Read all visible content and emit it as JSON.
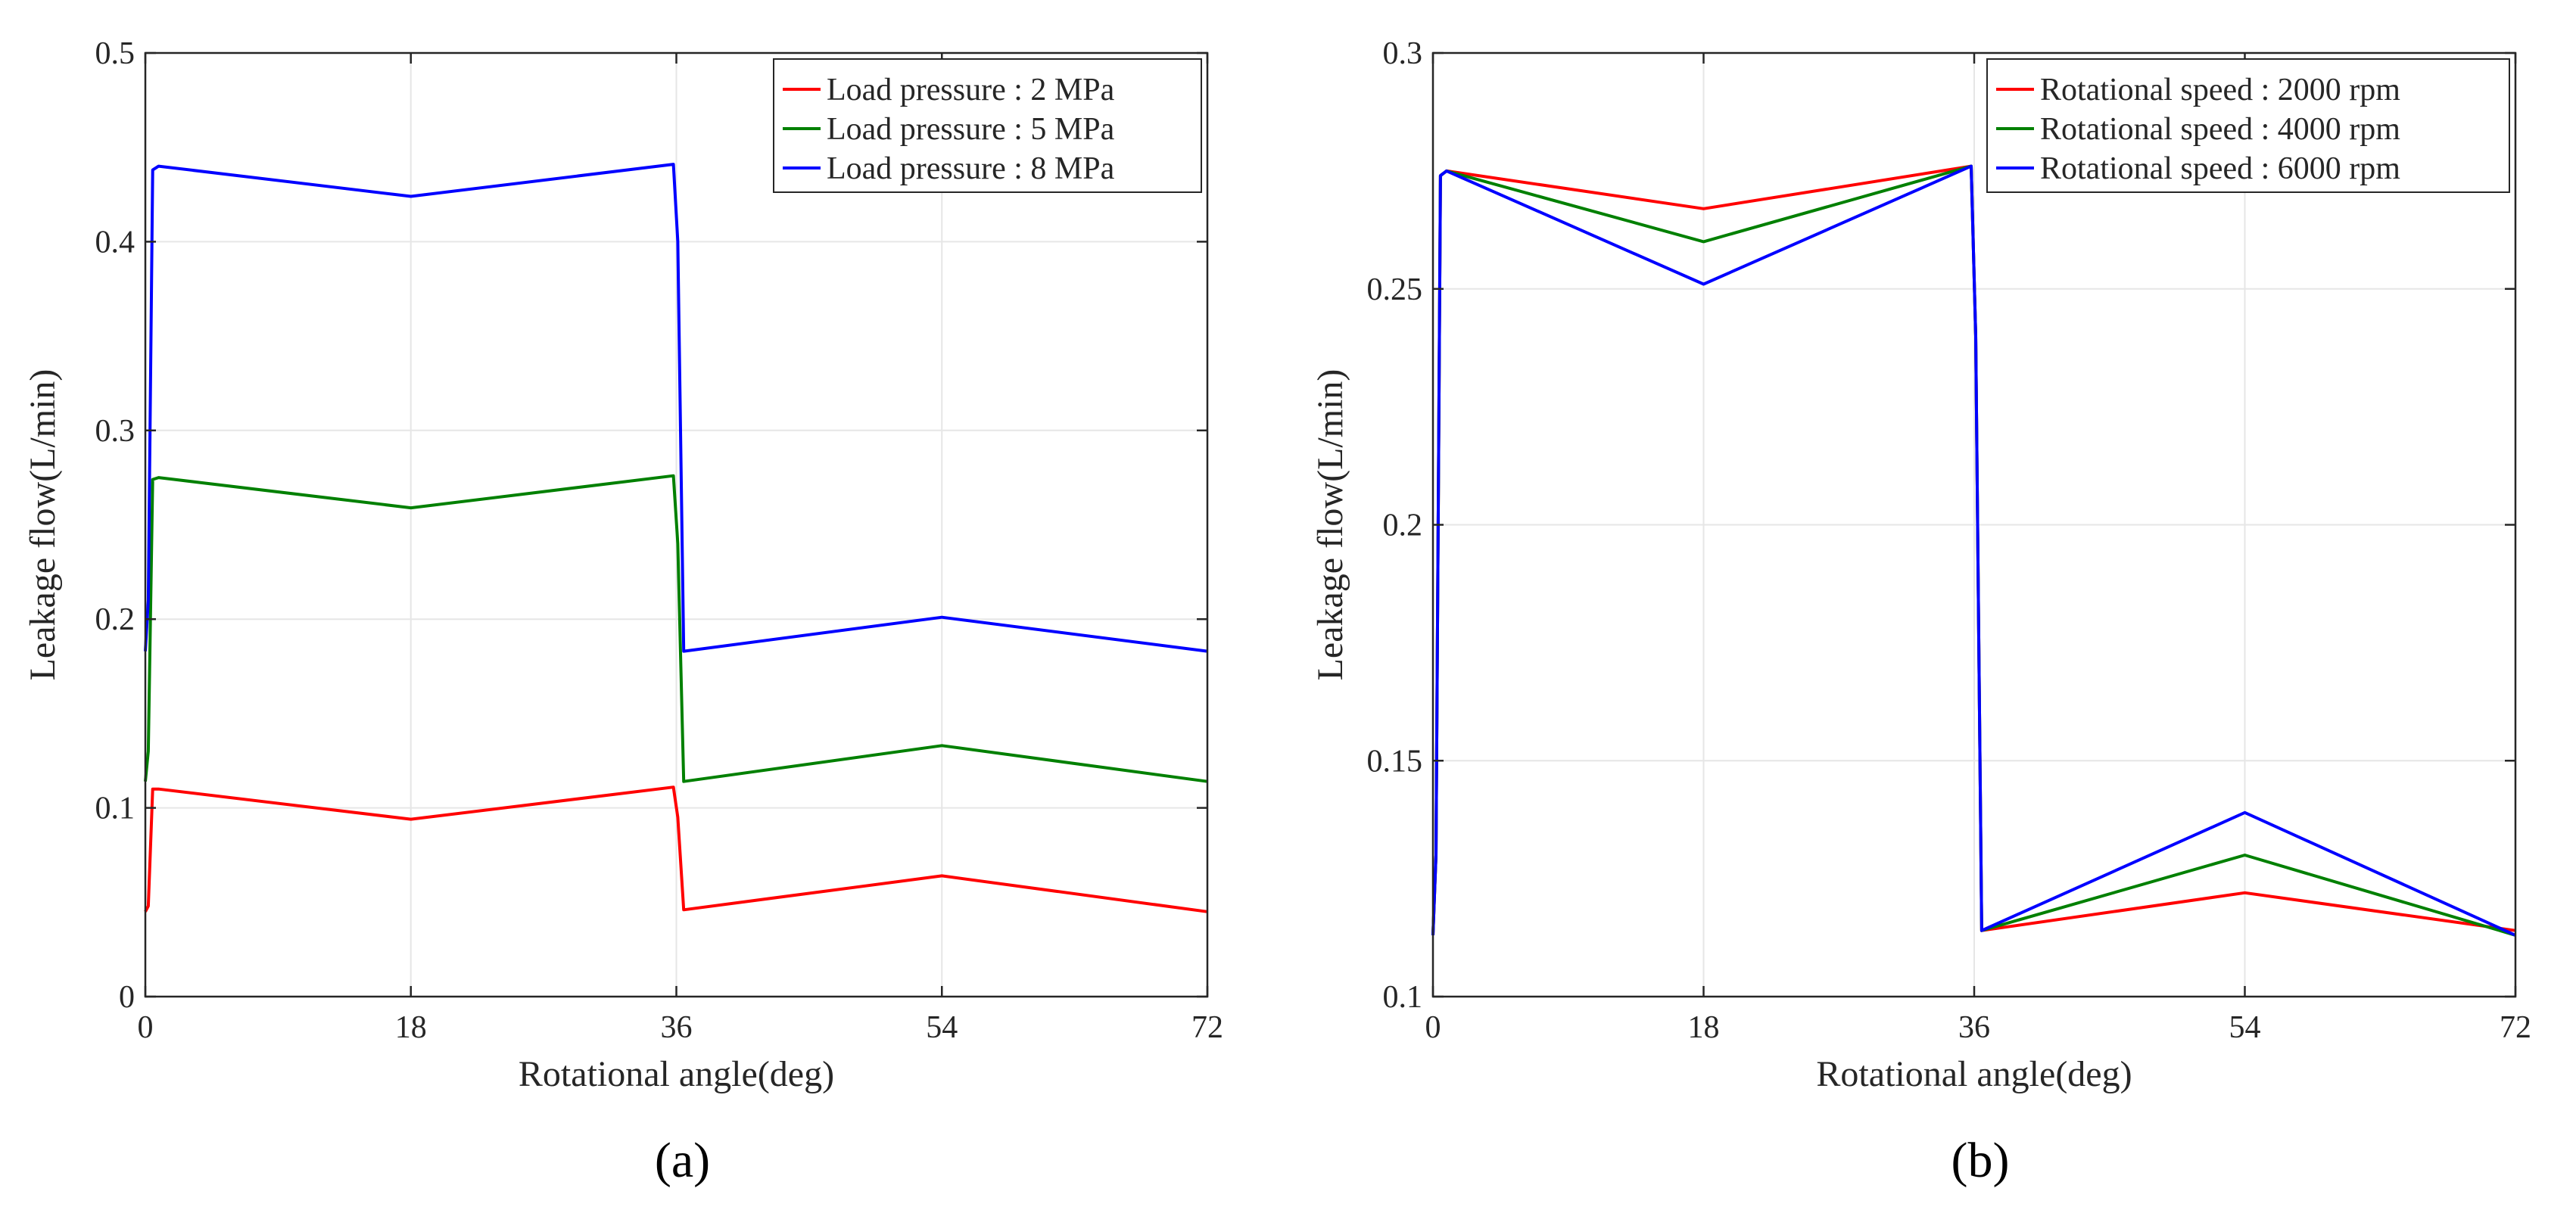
{
  "chart_data": [
    {
      "type": "line",
      "panel_label": "(a)",
      "xlabel": "Rotational angle(deg)",
      "ylabel": "Leakage flow(L/min)",
      "xlim": [
        0,
        72
      ],
      "ylim": [
        0,
        0.5
      ],
      "xticks": [
        0,
        18,
        36,
        54,
        72
      ],
      "yticks": [
        0,
        0.1,
        0.2,
        0.3,
        0.4,
        0.5
      ],
      "ytick_labels": [
        "0",
        "0.1",
        "0.2",
        "0.3",
        "0.4",
        "0.5"
      ],
      "grid": true,
      "legend_position": "top-right",
      "series": [
        {
          "name": "Load pressure : 2 MPa",
          "color": "#ff0000",
          "x": [
            0,
            0.2,
            0.5,
            0.9,
            18,
            35.8,
            36.1,
            36.5,
            54,
            72
          ],
          "y": [
            0.045,
            0.048,
            0.11,
            0.11,
            0.094,
            0.111,
            0.095,
            0.046,
            0.064,
            0.045
          ]
        },
        {
          "name": "Load pressure : 5 MPa",
          "color": "#008000",
          "x": [
            0,
            0.2,
            0.5,
            0.9,
            18,
            35.8,
            36.1,
            36.5,
            54,
            72
          ],
          "y": [
            0.114,
            0.13,
            0.274,
            0.275,
            0.259,
            0.276,
            0.24,
            0.114,
            0.133,
            0.114
          ]
        },
        {
          "name": "Load pressure : 8 MPa",
          "color": "#0000ff",
          "x": [
            0,
            0.2,
            0.5,
            0.9,
            18,
            35.8,
            36.1,
            36.5,
            54,
            72
          ],
          "y": [
            0.183,
            0.21,
            0.438,
            0.44,
            0.424,
            0.441,
            0.4,
            0.183,
            0.201,
            0.183
          ]
        }
      ]
    },
    {
      "type": "line",
      "panel_label": "(b)",
      "xlabel": "Rotational angle(deg)",
      "ylabel": "Leakage flow(L/min)",
      "xlim": [
        0,
        72
      ],
      "ylim": [
        0.1,
        0.3
      ],
      "xticks": [
        0,
        18,
        36,
        54,
        72
      ],
      "yticks": [
        0.1,
        0.15,
        0.2,
        0.25,
        0.3
      ],
      "ytick_labels": [
        "0.1",
        "0.15",
        "0.2",
        "0.25",
        "0.3"
      ],
      "grid": true,
      "legend_position": "top-right",
      "series": [
        {
          "name": "Rotational speed : 2000 rpm",
          "color": "#ff0000",
          "x": [
            0,
            0.2,
            0.5,
            0.9,
            18,
            35.8,
            36.1,
            36.5,
            54,
            72
          ],
          "y": [
            0.113,
            0.13,
            0.274,
            0.275,
            0.267,
            0.276,
            0.24,
            0.114,
            0.122,
            0.114
          ]
        },
        {
          "name": "Rotational speed : 4000 rpm",
          "color": "#008000",
          "x": [
            0,
            0.2,
            0.5,
            0.9,
            18,
            35.8,
            36.1,
            36.5,
            54,
            72
          ],
          "y": [
            0.113,
            0.13,
            0.274,
            0.275,
            0.26,
            0.276,
            0.24,
            0.114,
            0.13,
            0.113
          ]
        },
        {
          "name": "Rotational speed : 6000 rpm",
          "color": "#0000ff",
          "x": [
            0,
            0.2,
            0.5,
            0.9,
            18,
            35.8,
            36.1,
            36.5,
            54,
            72
          ],
          "y": [
            0.113,
            0.13,
            0.274,
            0.275,
            0.251,
            0.276,
            0.24,
            0.114,
            0.139,
            0.113
          ]
        }
      ]
    }
  ]
}
